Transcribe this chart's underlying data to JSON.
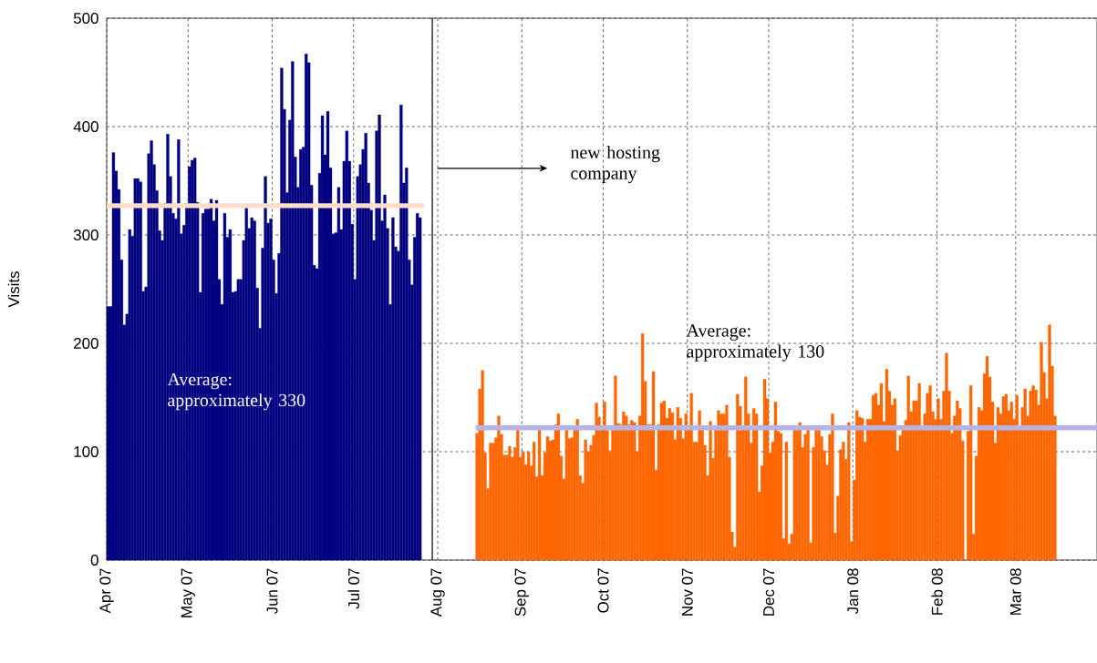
{
  "chart_data": {
    "type": "bar",
    "ylabel": "Visits",
    "xlim": [
      "2007-04-01",
      "2008-03-31"
    ],
    "ylim": [
      0,
      500
    ],
    "xticks": [
      {
        "value": "2007-04-01",
        "label": "Apr 07"
      },
      {
        "value": "2007-05-01",
        "label": "May 07"
      },
      {
        "value": "2007-06-01",
        "label": "Jun 07"
      },
      {
        "value": "2007-07-01",
        "label": "Jul 07"
      },
      {
        "value": "2007-08-01",
        "label": "Aug 07"
      },
      {
        "value": "2007-09-01",
        "label": "Sep 07"
      },
      {
        "value": "2007-10-01",
        "label": "Oct 07"
      },
      {
        "value": "2007-11-01",
        "label": "Nov 07"
      },
      {
        "value": "2007-12-01",
        "label": "Dec 07"
      },
      {
        "value": "2008-01-01",
        "label": "Jan 08"
      },
      {
        "value": "2008-02-01",
        "label": "Feb 08"
      },
      {
        "value": "2008-03-01",
        "label": "Mar 08"
      }
    ],
    "yticks": [
      0,
      100,
      200,
      300,
      400,
      500
    ],
    "grid": true,
    "annotations": [
      "new hosting company",
      "Average: approximately 330",
      "Average: approximately 130"
    ],
    "ref_lines": [
      {
        "axis": "x",
        "value": "2007-07-30",
        "color": "#000000"
      }
    ],
    "series": [
      {
        "color": "#000080",
        "x": [
          "2007-04-01",
          "2007-04-02",
          "2007-04-03",
          "2007-04-04",
          "2007-04-05",
          "2007-04-06",
          "2007-04-07",
          "2007-04-08",
          "2007-04-09",
          "2007-04-10",
          "2007-04-11",
          "2007-04-12",
          "2007-04-13",
          "2007-04-14",
          "2007-04-15",
          "2007-04-16",
          "2007-04-17",
          "2007-04-18",
          "2007-04-19",
          "2007-04-20",
          "2007-04-21",
          "2007-04-22",
          "2007-04-23",
          "2007-04-24",
          "2007-04-25",
          "2007-04-26",
          "2007-04-27",
          "2007-04-28",
          "2007-04-29",
          "2007-04-30",
          "2007-05-01",
          "2007-05-02",
          "2007-05-03",
          "2007-05-04",
          "2007-05-05",
          "2007-05-06",
          "2007-05-07",
          "2007-05-08",
          "2007-05-09",
          "2007-05-10",
          "2007-05-11",
          "2007-05-12",
          "2007-05-13",
          "2007-05-14",
          "2007-05-15",
          "2007-05-16",
          "2007-05-17",
          "2007-05-18",
          "2007-05-19",
          "2007-05-20",
          "2007-05-21",
          "2007-05-22",
          "2007-05-23",
          "2007-05-24",
          "2007-05-25",
          "2007-05-26",
          "2007-05-27",
          "2007-05-28",
          "2007-05-29",
          "2007-05-30",
          "2007-05-31",
          "2007-06-01",
          "2007-06-02",
          "2007-06-03",
          "2007-06-04",
          "2007-06-05",
          "2007-06-06",
          "2007-06-07",
          "2007-06-08",
          "2007-06-09",
          "2007-06-10",
          "2007-06-11",
          "2007-06-12",
          "2007-06-13",
          "2007-06-14",
          "2007-06-15",
          "2007-06-16",
          "2007-06-17",
          "2007-06-18",
          "2007-06-19",
          "2007-06-20",
          "2007-06-21",
          "2007-06-22",
          "2007-06-23",
          "2007-06-24",
          "2007-06-25",
          "2007-06-26",
          "2007-06-27",
          "2007-06-28",
          "2007-06-29",
          "2007-06-30",
          "2007-07-01",
          "2007-07-02",
          "2007-07-03",
          "2007-07-04",
          "2007-07-05",
          "2007-07-06",
          "2007-07-07",
          "2007-07-08",
          "2007-07-09",
          "2007-07-10",
          "2007-07-11",
          "2007-07-12",
          "2007-07-13",
          "2007-07-14",
          "2007-07-15",
          "2007-07-16",
          "2007-07-17",
          "2007-07-18",
          "2007-07-19",
          "2007-07-20",
          "2007-07-21",
          "2007-07-22",
          "2007-07-23",
          "2007-07-24",
          "2007-07-25"
        ],
        "values": [
          234,
          234,
          376,
          359,
          342,
          277,
          217,
          227,
          305,
          299,
          352,
          352,
          349,
          248,
          252,
          375,
          387,
          365,
          341,
          304,
          295,
          329,
          393,
          354,
          320,
          315,
          388,
          301,
          309,
          329,
          363,
          369,
          371,
          330,
          247,
          320,
          324,
          324,
          333,
          313,
          332,
          259,
          236,
          320,
          298,
          305,
          247,
          248,
          259,
          259,
          295,
          325,
          306,
          316,
          313,
          251,
          214,
          288,
          354,
          311,
          315,
          277,
          246,
          283,
          454,
          416,
          339,
          406,
          460,
          372,
          344,
          379,
          381,
          467,
          459,
          346,
          272,
          269,
          357,
          410,
          374,
          414,
          362,
          301,
          302,
          344,
          305,
          368,
          396,
          368,
          310,
          259,
          354,
          365,
          379,
          394,
          348,
          323,
          295,
          396,
          411,
          313,
          337,
          306,
          236,
          316,
          289,
          285,
          420,
          348,
          362,
          277,
          254,
          298,
          320,
          316
        ]
      },
      {
        "color": "#ff6600",
        "x": [
          "2007-08-15",
          "2007-08-16",
          "2007-08-17",
          "2007-08-18",
          "2007-08-19",
          "2007-08-20",
          "2007-08-21",
          "2007-08-22",
          "2007-08-23",
          "2007-08-24",
          "2007-08-25",
          "2007-08-26",
          "2007-08-27",
          "2007-08-28",
          "2007-08-29",
          "2007-08-30",
          "2007-08-31",
          "2007-09-01",
          "2007-09-02",
          "2007-09-03",
          "2007-09-04",
          "2007-09-05",
          "2007-09-06",
          "2007-09-07",
          "2007-09-08",
          "2007-09-09",
          "2007-09-10",
          "2007-09-11",
          "2007-09-12",
          "2007-09-13",
          "2007-09-14",
          "2007-09-15",
          "2007-09-16",
          "2007-09-17",
          "2007-09-18",
          "2007-09-19",
          "2007-09-20",
          "2007-09-21",
          "2007-09-22",
          "2007-09-23",
          "2007-09-24",
          "2007-09-25",
          "2007-09-26",
          "2007-09-27",
          "2007-09-28",
          "2007-09-29",
          "2007-09-30",
          "2007-10-01",
          "2007-10-02",
          "2007-10-03",
          "2007-10-04",
          "2007-10-05",
          "2007-10-06",
          "2007-10-07",
          "2007-10-08",
          "2007-10-09",
          "2007-10-10",
          "2007-10-11",
          "2007-10-12",
          "2007-10-13",
          "2007-10-14",
          "2007-10-15",
          "2007-10-16",
          "2007-10-17",
          "2007-10-18",
          "2007-10-19",
          "2007-10-20",
          "2007-10-21",
          "2007-10-22",
          "2007-10-23",
          "2007-10-24",
          "2007-10-25",
          "2007-10-26",
          "2007-10-27",
          "2007-10-28",
          "2007-10-29",
          "2007-10-30",
          "2007-10-31",
          "2007-11-01",
          "2007-11-02",
          "2007-11-03",
          "2007-11-04",
          "2007-11-05",
          "2007-11-06",
          "2007-11-07",
          "2007-11-08",
          "2007-11-09",
          "2007-11-10",
          "2007-11-11",
          "2007-11-12",
          "2007-11-13",
          "2007-11-14",
          "2007-11-15",
          "2007-11-16",
          "2007-11-17",
          "2007-11-18",
          "2007-11-19",
          "2007-11-20",
          "2007-11-21",
          "2007-11-22",
          "2007-11-23",
          "2007-11-24",
          "2007-11-25",
          "2007-11-26",
          "2007-11-27",
          "2007-11-28",
          "2007-11-29",
          "2007-11-30",
          "2007-12-01",
          "2007-12-02",
          "2007-12-03",
          "2007-12-04",
          "2007-12-05",
          "2007-12-06",
          "2007-12-07",
          "2007-12-08",
          "2007-12-09",
          "2007-12-10",
          "2007-12-11",
          "2007-12-12",
          "2007-12-13",
          "2007-12-14",
          "2007-12-15",
          "2007-12-16",
          "2007-12-17",
          "2007-12-18",
          "2007-12-19",
          "2007-12-20",
          "2007-12-21",
          "2007-12-22",
          "2007-12-23",
          "2007-12-24",
          "2007-12-25",
          "2007-12-26",
          "2007-12-27",
          "2007-12-28",
          "2007-12-29",
          "2007-12-30",
          "2007-12-31",
          "2008-01-01",
          "2008-01-02",
          "2008-01-03",
          "2008-01-04",
          "2008-01-05",
          "2008-01-06",
          "2008-01-07",
          "2008-01-08",
          "2008-01-09",
          "2008-01-10",
          "2008-01-11",
          "2008-01-12",
          "2008-01-13",
          "2008-01-14",
          "2008-01-15",
          "2008-01-16",
          "2008-01-17",
          "2008-01-18",
          "2008-01-19",
          "2008-01-20",
          "2008-01-21",
          "2008-01-22",
          "2008-01-23",
          "2008-01-24",
          "2008-01-25",
          "2008-01-26",
          "2008-01-27",
          "2008-01-28",
          "2008-01-29",
          "2008-01-30",
          "2008-01-31",
          "2008-02-01",
          "2008-02-02",
          "2008-02-03",
          "2008-02-04",
          "2008-02-05",
          "2008-02-06",
          "2008-02-07",
          "2008-02-08",
          "2008-02-09",
          "2008-02-10",
          "2008-02-11",
          "2008-02-12",
          "2008-02-13",
          "2008-02-14",
          "2008-02-15",
          "2008-02-16",
          "2008-02-17",
          "2008-02-18",
          "2008-02-19",
          "2008-02-20",
          "2008-02-21",
          "2008-02-22",
          "2008-02-23",
          "2008-02-24",
          "2008-02-25",
          "2008-02-26",
          "2008-02-27",
          "2008-02-28",
          "2008-02-29",
          "2008-03-01",
          "2008-03-02",
          "2008-03-03",
          "2008-03-04",
          "2008-03-05",
          "2008-03-06",
          "2008-03-07",
          "2008-03-08",
          "2008-03-09",
          "2008-03-10",
          "2008-03-11",
          "2008-03-12",
          "2008-03-13",
          "2008-03-14",
          "2008-03-15"
        ],
        "values": [
          117,
          158,
          175,
          99,
          66,
          108,
          108,
          113,
          133,
          116,
          97,
          97,
          105,
          95,
          104,
          120,
          95,
          100,
          88,
          100,
          87,
          109,
          77,
          120,
          78,
          99,
          114,
          110,
          111,
          125,
          135,
          96,
          75,
          120,
          112,
          113,
          120,
          130,
          78,
          71,
          111,
          100,
          106,
          115,
          145,
          132,
          120,
          146,
          120,
          101,
          120,
          170,
          126,
          125,
          137,
          133,
          125,
          129,
          127,
          100,
          133,
          209,
          165,
          125,
          125,
          174,
          83,
          125,
          145,
          147,
          131,
          140,
          136,
          111,
          141,
          131,
          112,
          135,
          120,
          154,
          109,
          109,
          138,
          122,
          106,
          78,
          128,
          94,
          120,
          138,
          135,
          135,
          143,
          95,
          26,
          12,
          153,
          142,
          120,
          169,
          135,
          108,
          140,
          135,
          63,
          87,
          167,
          149,
          99,
          109,
          146,
          119,
          117,
          20,
          109,
          15,
          24,
          120,
          120,
          127,
          104,
          116,
          120,
          16,
          104,
          120,
          120,
          114,
          101,
          88,
          116,
          135,
          25,
          59,
          102,
          109,
          93,
          127,
          17,
          74,
          138,
          132,
          131,
          109,
          130,
          130,
          152,
          154,
          143,
          163,
          128,
          176,
          156,
          143,
          149,
          101,
          115,
          120,
          129,
          170,
          137,
          147,
          147,
          163,
          120,
          135,
          154,
          161,
          137,
          130,
          149,
          130,
          156,
          191,
          156,
          117,
          133,
          147,
          140,
          110,
          null,
          119,
          161,
          24,
          96,
          141,
          138,
          172,
          188,
          169,
          146,
          108,
          141,
          135,
          151,
          153,
          138,
          146,
          130,
          152,
          120,
          141,
          158,
          133,
          156,
          161,
          157,
          143,
          201,
          173,
          149,
          217,
          179,
          133
        ]
      },
      {
        "type": "line",
        "color": "#ffdcc8",
        "x": [
          "2007-04-01",
          "2007-07-27"
        ],
        "values": [
          327,
          327
        ]
      },
      {
        "type": "line",
        "color": "#b4b4e6",
        "x": [
          "2007-08-15",
          "2008-03-31"
        ],
        "values": [
          122,
          122
        ]
      }
    ]
  }
}
